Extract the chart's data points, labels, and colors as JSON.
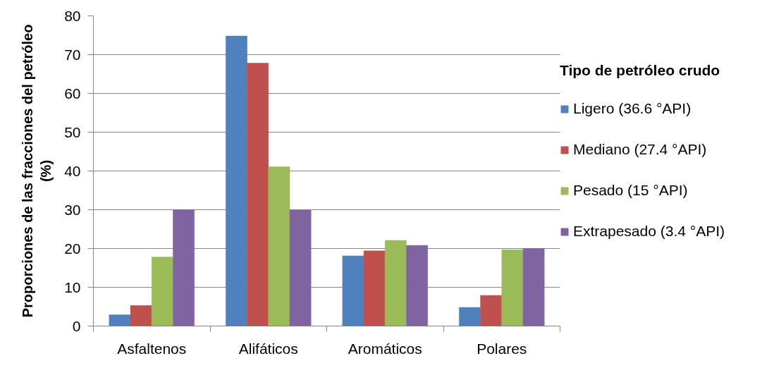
{
  "chart_data": {
    "type": "bar",
    "categories": [
      "Asfaltenos",
      "Alifáticos",
      "Aromáticos",
      "Polares"
    ],
    "ylabel": "Proporciones de las fracciones del petróleo\n(%)",
    "legend_title": "Tipo de petróleo crudo",
    "series": [
      {
        "name": "Ligero (36.6 °API)",
        "color": "#4f81bd",
        "values": [
          2.9,
          74.8,
          18.1,
          4.8
        ]
      },
      {
        "name": "Mediano (27.4 °API)",
        "color": "#c0504d",
        "values": [
          5.3,
          67.8,
          19.4,
          7.9
        ]
      },
      {
        "name": "Pesado (15 °API)",
        "color": "#9bbb59",
        "values": [
          17.8,
          41.1,
          22.1,
          19.7
        ]
      },
      {
        "name": "Extrapesado (3.4 °API)",
        "color": "#8064a2",
        "values": [
          30.0,
          29.9,
          20.8,
          20.0
        ]
      }
    ],
    "ylim": [
      0,
      80
    ],
    "yticks": [
      0,
      10,
      20,
      30,
      40,
      50,
      60,
      70,
      80
    ],
    "grid": "y",
    "legend": "right"
  }
}
